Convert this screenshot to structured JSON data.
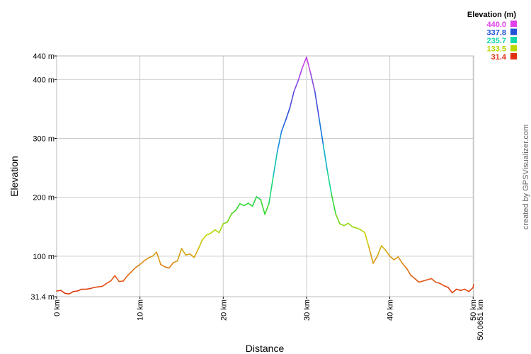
{
  "chart_data": {
    "type": "line",
    "xlabel": "Distance",
    "ylabel": "Elevation",
    "xlim": [
      0,
      50.0651
    ],
    "ylim": [
      31.4,
      440
    ],
    "grid": true,
    "x_ticks": [
      {
        "value": 0,
        "label": "0 km"
      },
      {
        "value": 10,
        "label": "10 km"
      },
      {
        "value": 20,
        "label": "20 km"
      },
      {
        "value": 30,
        "label": "30 km"
      },
      {
        "value": 40,
        "label": "40 km"
      },
      {
        "value": 50,
        "label": "50 km"
      },
      {
        "value": 50.0651,
        "label": "50.0651 km"
      }
    ],
    "y_ticks": [
      {
        "value": 31.4,
        "label": "31.4 m"
      },
      {
        "value": 100,
        "label": "100 m"
      },
      {
        "value": 200,
        "label": "200 m"
      },
      {
        "value": 300,
        "label": "300 m"
      },
      {
        "value": 400,
        "label": "400 m"
      },
      {
        "value": 440,
        "label": "440 m"
      }
    ],
    "legend": {
      "title": "Elevation (m)",
      "position": "top-right",
      "entries": [
        {
          "label": "440.0",
          "color": "#e040e8"
        },
        {
          "label": "337.8",
          "color": "#2050d8"
        },
        {
          "label": "235.7",
          "color": "#10d8a8"
        },
        {
          "label": "133.5",
          "color": "#b8d800"
        },
        {
          "label": "31.4",
          "color": "#e03010"
        }
      ]
    },
    "series": [
      {
        "x": [
          0,
          0.5,
          1,
          1.5,
          2,
          2.5,
          3,
          3.5,
          4,
          4.5,
          5,
          5.5,
          6,
          6.5,
          7,
          7.5,
          8,
          8.5,
          9,
          9.5,
          10,
          10.5,
          11,
          11.5,
          12,
          12.5,
          13,
          13.5,
          14,
          14.5,
          15,
          15.5,
          16,
          16.5,
          17,
          17.5,
          18,
          18.5,
          19,
          19.5,
          20,
          20.5,
          21,
          21.5,
          22,
          22.5,
          23,
          23.5,
          24,
          24.5,
          25,
          25.5,
          26,
          26.5,
          27,
          27.5,
          28,
          28.5,
          29,
          29.5,
          30,
          30.5,
          31,
          31.5,
          32,
          32.5,
          33,
          33.5,
          34,
          34.5,
          35,
          35.5,
          36,
          36.5,
          37,
          37.5,
          38,
          38.5,
          39,
          39.5,
          40,
          40.5,
          41,
          41.5,
          42,
          42.5,
          43,
          43.5,
          44,
          44.5,
          45,
          45.5,
          46,
          46.5,
          47,
          47.5,
          48,
          48.5,
          49,
          49.5,
          50,
          50.0651
        ],
        "y": [
          41,
          42,
          37,
          36,
          40,
          41,
          44,
          44,
          45,
          47,
          48,
          49,
          54,
          58,
          67,
          57,
          58,
          67,
          74,
          81,
          86,
          92,
          97,
          100,
          107,
          86,
          82,
          80,
          89,
          92,
          113,
          102,
          104,
          98,
          112,
          128,
          136,
          139,
          145,
          140,
          155,
          158,
          172,
          178,
          189,
          186,
          190,
          185,
          201,
          196,
          171,
          190,
          235,
          278,
          312,
          331,
          352,
          380,
          398,
          420,
          438,
          410,
          380,
          335,
          290,
          245,
          205,
          172,
          155,
          152,
          156,
          150,
          148,
          145,
          140,
          115,
          88,
          100,
          118,
          110,
          100,
          94,
          99,
          88,
          80,
          68,
          62,
          56,
          58,
          60,
          62,
          56,
          54,
          50,
          47,
          38,
          44,
          42,
          44,
          40,
          47,
          52
        ]
      }
    ]
  },
  "credit": "created by GPSVisualizer.com"
}
